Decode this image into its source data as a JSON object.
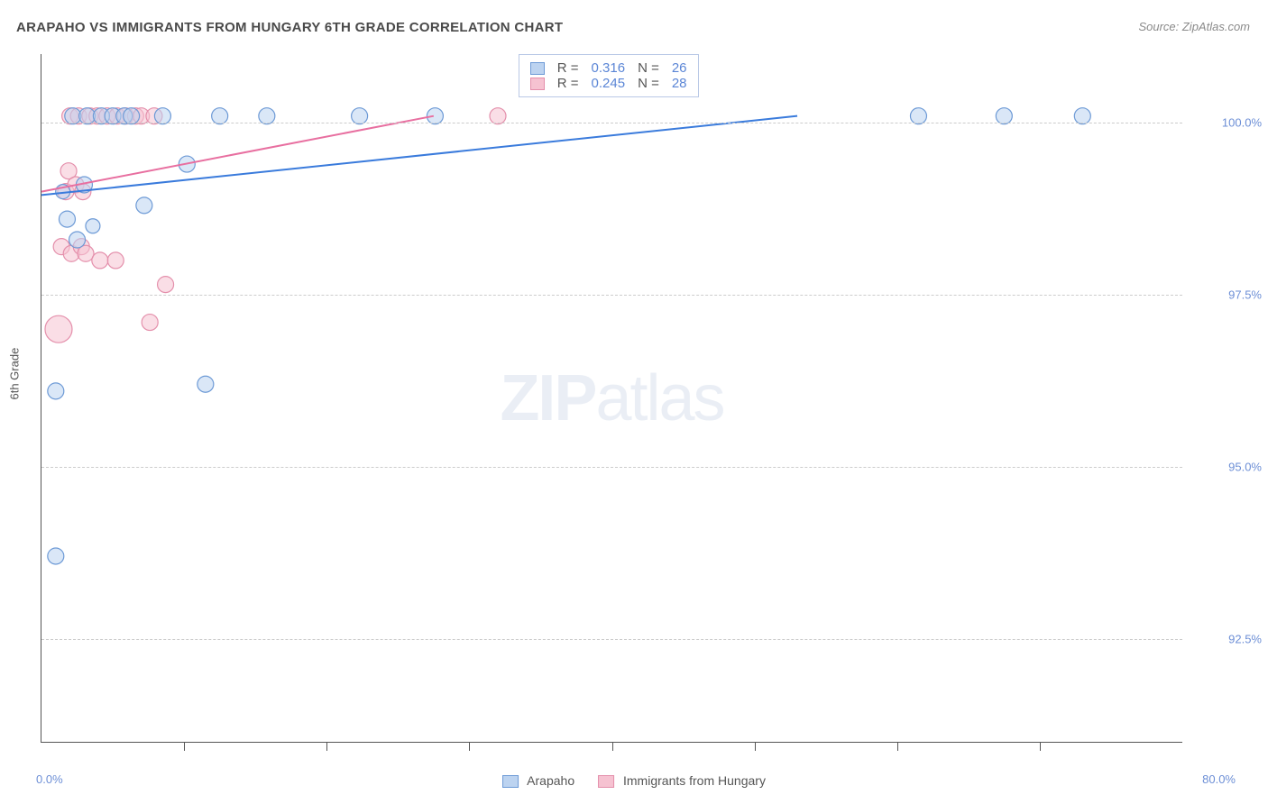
{
  "title": "ARAPAHO VS IMMIGRANTS FROM HUNGARY 6TH GRADE CORRELATION CHART",
  "source": "Source: ZipAtlas.com",
  "y_axis_title": "6th Grade",
  "watermark": {
    "bold": "ZIP",
    "light": "atlas"
  },
  "chart": {
    "type": "scatter",
    "background_color": "#ffffff",
    "grid_color": "#cccccc",
    "border_color": "#555555",
    "xlim": [
      0,
      80
    ],
    "x_tick_step": 10,
    "ylim": [
      91,
      101
    ],
    "y_ticks": [
      92.5,
      95.0,
      97.5,
      100.0
    ],
    "y_tick_labels": [
      "92.5%",
      "95.0%",
      "97.5%",
      "100.0%"
    ],
    "x_min_label": "0.0%",
    "x_max_label": "80.0%",
    "series": {
      "arapaho": {
        "label": "Arapaho",
        "fill": "#bcd3f0",
        "stroke": "#6d9ad6",
        "fill_opacity": 0.55,
        "r_default": 9,
        "points": [
          {
            "x": 1.0,
            "y": 93.7,
            "r": 9
          },
          {
            "x": 1.0,
            "y": 96.1,
            "r": 9
          },
          {
            "x": 1.5,
            "y": 99.0,
            "r": 8
          },
          {
            "x": 1.8,
            "y": 98.6,
            "r": 9
          },
          {
            "x": 2.2,
            "y": 100.1,
            "r": 9
          },
          {
            "x": 2.5,
            "y": 98.3,
            "r": 9
          },
          {
            "x": 3.0,
            "y": 99.1,
            "r": 9
          },
          {
            "x": 3.2,
            "y": 100.1,
            "r": 9
          },
          {
            "x": 3.6,
            "y": 98.5,
            "r": 8
          },
          {
            "x": 4.2,
            "y": 100.1,
            "r": 9
          },
          {
            "x": 5.0,
            "y": 100.1,
            "r": 9
          },
          {
            "x": 5.8,
            "y": 100.1,
            "r": 9
          },
          {
            "x": 6.3,
            "y": 100.1,
            "r": 9
          },
          {
            "x": 7.2,
            "y": 98.8,
            "r": 9
          },
          {
            "x": 8.5,
            "y": 100.1,
            "r": 9
          },
          {
            "x": 10.2,
            "y": 99.4,
            "r": 9
          },
          {
            "x": 11.5,
            "y": 96.2,
            "r": 9
          },
          {
            "x": 12.5,
            "y": 100.1,
            "r": 9
          },
          {
            "x": 15.8,
            "y": 100.1,
            "r": 9
          },
          {
            "x": 22.3,
            "y": 100.1,
            "r": 9
          },
          {
            "x": 27.6,
            "y": 100.1,
            "r": 9
          },
          {
            "x": 61.5,
            "y": 100.1,
            "r": 9
          },
          {
            "x": 67.5,
            "y": 100.1,
            "r": 9
          },
          {
            "x": 73.0,
            "y": 100.1,
            "r": 9
          }
        ],
        "regression": {
          "x1": 0.0,
          "y1": 98.95,
          "x2": 53.0,
          "y2": 100.1,
          "stroke": "#3a7bdc",
          "width": 2
        },
        "stats": {
          "r": "0.316",
          "n": "26"
        }
      },
      "hungary": {
        "label": "Immigrants from Hungary",
        "fill": "#f6c2d1",
        "stroke": "#e48fab",
        "fill_opacity": 0.55,
        "r_default": 9,
        "points": [
          {
            "x": 1.2,
            "y": 97.0,
            "r": 15
          },
          {
            "x": 1.4,
            "y": 98.2,
            "r": 9
          },
          {
            "x": 1.7,
            "y": 99.0,
            "r": 9
          },
          {
            "x": 1.9,
            "y": 99.3,
            "r": 9
          },
          {
            "x": 2.0,
            "y": 100.1,
            "r": 9
          },
          {
            "x": 2.1,
            "y": 98.1,
            "r": 9
          },
          {
            "x": 2.4,
            "y": 99.1,
            "r": 9
          },
          {
            "x": 2.6,
            "y": 100.1,
            "r": 9
          },
          {
            "x": 2.8,
            "y": 98.2,
            "r": 9
          },
          {
            "x": 2.9,
            "y": 99.0,
            "r": 9
          },
          {
            "x": 3.1,
            "y": 98.1,
            "r": 9
          },
          {
            "x": 3.4,
            "y": 100.1,
            "r": 9
          },
          {
            "x": 3.9,
            "y": 100.1,
            "r": 9
          },
          {
            "x": 4.1,
            "y": 98.0,
            "r": 9
          },
          {
            "x": 4.6,
            "y": 100.1,
            "r": 9
          },
          {
            "x": 5.2,
            "y": 98.0,
            "r": 9
          },
          {
            "x": 5.3,
            "y": 100.1,
            "r": 9
          },
          {
            "x": 5.9,
            "y": 100.1,
            "r": 9
          },
          {
            "x": 6.6,
            "y": 100.1,
            "r": 9
          },
          {
            "x": 7.0,
            "y": 100.1,
            "r": 9
          },
          {
            "x": 7.6,
            "y": 97.1,
            "r": 9
          },
          {
            "x": 7.9,
            "y": 100.1,
            "r": 9
          },
          {
            "x": 8.7,
            "y": 97.65,
            "r": 9
          },
          {
            "x": 32.0,
            "y": 100.1,
            "r": 9
          }
        ],
        "regression": {
          "x1": 0.0,
          "y1": 99.0,
          "x2": 27.5,
          "y2": 100.1,
          "stroke": "#e86fa0",
          "width": 2
        },
        "stats": {
          "r": "0.245",
          "n": "28"
        }
      }
    },
    "stats_box": {
      "left_pct": 41.8,
      "top_pct": 0.0
    }
  },
  "legend_bottom": [
    {
      "label": "Arapaho",
      "fill": "#bcd3f0",
      "stroke": "#6d9ad6"
    },
    {
      "label": "Immigrants from Hungary",
      "fill": "#f6c2d1",
      "stroke": "#e48fab"
    }
  ],
  "text_colors": {
    "title": "#4a4a4a",
    "source": "#8a8a8a",
    "ylabel": "#6d8fd6",
    "stat_val": "#5b86d6"
  }
}
